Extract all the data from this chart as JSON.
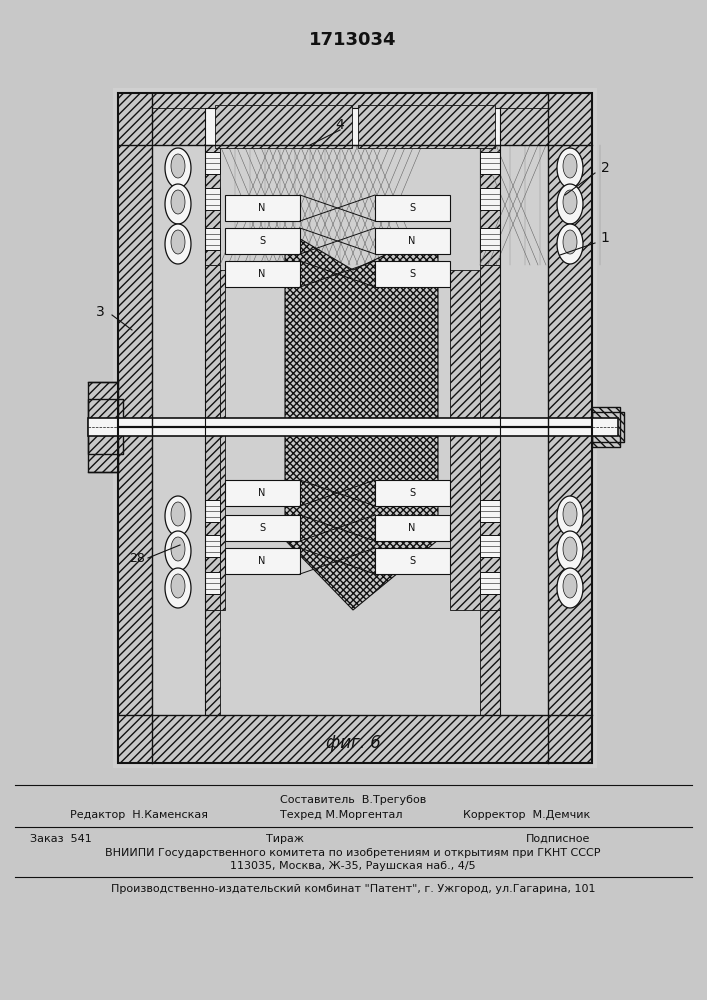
{
  "title": "1713034",
  "fig_label": "фиг. 6",
  "label_1": "1",
  "label_2": "2",
  "label_3": "3",
  "label_4": "4",
  "label_28": "28",
  "bg_color": "#c8c8c8",
  "paper_color": "#d4d4d4",
  "line_color": "#111111",
  "white": "#f5f5f5",
  "footer_bg": "#c8c8c8",
  "hatch_lw": 0.5,
  "draw_lw": 1.0,
  "footer_rows": [
    [
      "Составитель  В.Трегубов",
      "center",
      9.0
    ],
    [
      "Редактор  Н.Каменская",
      "left",
      9.0
    ],
    [
      "Техред М.Моргентал",
      "center",
      9.0
    ],
    [
      "Корректор  М.Демчик",
      "right",
      9.0
    ]
  ],
  "footer_line2_left": "Заказ  541",
  "footer_line2_center": "Тираж",
  "footer_line2_right": "Подписное",
  "footer_line3": "ВНИИПИ Государственного комитета по изобретениям и открытиям при ГКНТ СССР",
  "footer_line4": "113035, Москва, Ж-35, Раушская наб., 4/5",
  "footer_line5": "Производственно-издательский комбинат \"Патент\", г. Ужгород, ул.Гагарина, 101"
}
